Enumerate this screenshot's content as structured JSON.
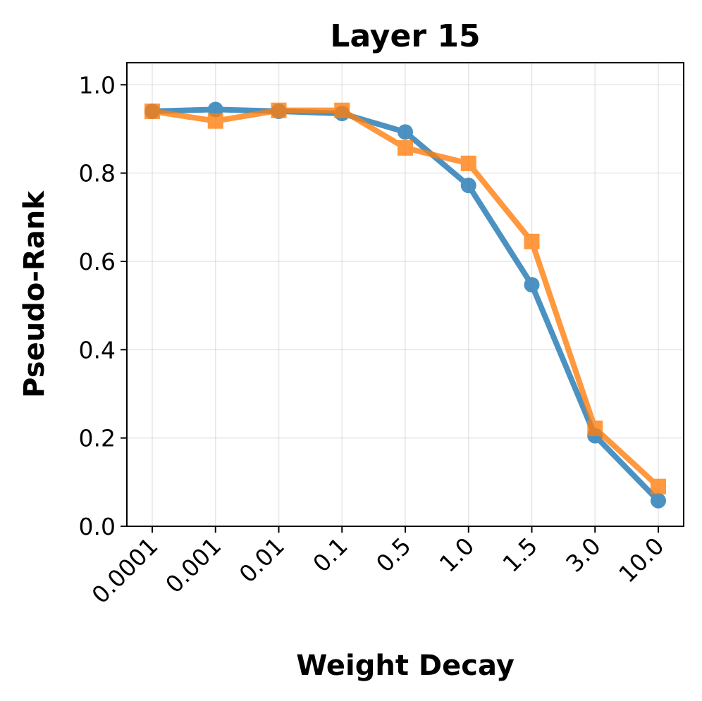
{
  "chart_data": {
    "type": "line",
    "title": "Layer 15",
    "xlabel": "Weight Decay",
    "ylabel": "Pseudo-Rank",
    "categories": [
      "0.0001",
      "0.001",
      "0.01",
      "0.1",
      "0.5",
      "1.0",
      "1.5",
      "3.0",
      "10.0"
    ],
    "ylim": [
      0.0,
      1.05
    ],
    "yticks": [
      0.0,
      0.2,
      0.4,
      0.6,
      0.8,
      1.0
    ],
    "ytick_labels": [
      "0.0",
      "0.2",
      "0.4",
      "0.6",
      "0.8",
      "1.0"
    ],
    "grid": true,
    "series": [
      {
        "marker": "circle",
        "color": "#1f77b4",
        "values": [
          0.94,
          0.944,
          0.94,
          0.935,
          0.893,
          0.772,
          0.547,
          0.205,
          0.058
        ]
      },
      {
        "marker": "square",
        "color": "#ff7f0e",
        "values": [
          0.94,
          0.918,
          0.942,
          0.942,
          0.857,
          0.822,
          0.645,
          0.222,
          0.09
        ]
      }
    ]
  }
}
